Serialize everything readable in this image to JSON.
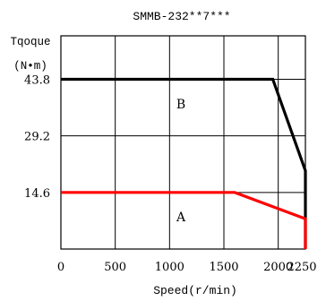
{
  "chart_data": {
    "type": "line",
    "title": "SMMB-232**7***",
    "ylabel_line1": "Tqoque",
    "ylabel_line2": "(N•m)",
    "xlabel": "Speed(r/min)",
    "xlim": [
      0,
      2250
    ],
    "ylim": [
      0,
      55
    ],
    "x_tick_labels": [
      "0",
      "500",
      "1000",
      "1500",
      "2000",
      "2250"
    ],
    "y_tick_labels": [
      "43.8",
      "29.2",
      "14.6"
    ],
    "grid": true,
    "series": [
      {
        "name": "B",
        "color": "#000000",
        "points": [
          [
            0,
            43.8
          ],
          [
            1950,
            43.8
          ],
          [
            2250,
            20.2
          ],
          [
            2250,
            0
          ]
        ]
      },
      {
        "name": "A",
        "color": "#ff0000",
        "points": [
          [
            0,
            14.6
          ],
          [
            1600,
            14.6
          ],
          [
            2250,
            7.8
          ],
          [
            2250,
            0
          ]
        ]
      }
    ],
    "annotations": [
      "B",
      "A"
    ]
  }
}
